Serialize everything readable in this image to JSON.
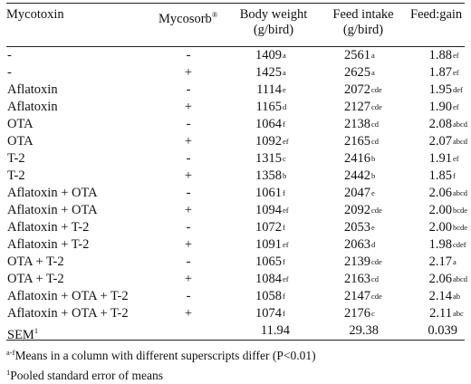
{
  "headers": {
    "mycotoxin": "Mycotoxin",
    "mycosorb": "Mycosorb",
    "mycosorb_mark": "®",
    "body_weight_1": "Body weight",
    "body_weight_2": "(g/bird)",
    "feed_intake_1": "Feed intake",
    "feed_intake_2": "(g/bird)",
    "feed_gain": "Feed:gain"
  },
  "rows": [
    {
      "mycotoxin": "-",
      "mycosorb": "-",
      "bw": "1409",
      "bw_sup": "a",
      "fi": "2561",
      "fi_sup": "a",
      "fg": "1.88",
      "fg_sup": "ef"
    },
    {
      "mycotoxin": "-",
      "mycosorb": "+",
      "bw": "1425",
      "bw_sup": "a",
      "fi": "2625",
      "fi_sup": "a",
      "fg": "1.87",
      "fg_sup": "ef"
    },
    {
      "mycotoxin": "Aflatoxin",
      "mycosorb": "-",
      "bw": "1114",
      "bw_sup": "e",
      "fi": "2072",
      "fi_sup": "cde",
      "fg": "1.95",
      "fg_sup": "def"
    },
    {
      "mycotoxin": "Aflatoxin",
      "mycosorb": "+",
      "bw": "1165",
      "bw_sup": "d",
      "fi": "2127",
      "fi_sup": "cde",
      "fg": "1.90",
      "fg_sup": "ef"
    },
    {
      "mycotoxin": "OTA",
      "mycosorb": "-",
      "bw": "1064",
      "bw_sup": "f",
      "fi": "2138",
      "fi_sup": "cd",
      "fg": "2.08",
      "fg_sup": "abcd"
    },
    {
      "mycotoxin": "OTA",
      "mycosorb": "+",
      "bw": "1092",
      "bw_sup": "ef",
      "fi": "2165",
      "fi_sup": "cd",
      "fg": "2.07",
      "fg_sup": "abcd"
    },
    {
      "mycotoxin": "T-2",
      "mycosorb": "-",
      "bw": "1315",
      "bw_sup": "c",
      "fi": "2416",
      "fi_sup": "b",
      "fg": "1.91",
      "fg_sup": "ef"
    },
    {
      "mycotoxin": "T-2",
      "mycosorb": "+",
      "bw": "1358",
      "bw_sup": "b",
      "fi": "2442",
      "fi_sup": "b",
      "fg": "1.85",
      "fg_sup": "f"
    },
    {
      "mycotoxin": "Aflatoxin + OTA",
      "mycosorb": "-",
      "bw": "1061",
      "bw_sup": "f",
      "fi": "2047",
      "fi_sup": "e",
      "fg": "2.06",
      "fg_sup": "abcd"
    },
    {
      "mycotoxin": "Aflatoxin + OTA",
      "mycosorb": "+",
      "bw": "1094",
      "bw_sup": "ef",
      "fi": "2092",
      "fi_sup": "cde",
      "fg": "2.00",
      "fg_sup": "bcde"
    },
    {
      "mycotoxin": "Aflatoxin + T-2",
      "mycosorb": "-",
      "bw": "1072",
      "bw_sup": "f",
      "fi": "2053",
      "fi_sup": "e",
      "fg": "2.00",
      "fg_sup": "bcde"
    },
    {
      "mycotoxin": "Aflatoxin + T-2",
      "mycosorb": "+",
      "bw": "1091",
      "bw_sup": "ef",
      "fi": "2063",
      "fi_sup": "d",
      "fg": "1.98",
      "fg_sup": "cdef"
    },
    {
      "mycotoxin": "OTA + T-2",
      "mycosorb": "-",
      "bw": "1065",
      "bw_sup": "f",
      "fi": "2139",
      "fi_sup": "cde",
      "fg": "2.17",
      "fg_sup": "a"
    },
    {
      "mycotoxin": "OTA + T-2",
      "mycosorb": "+",
      "bw": "1084",
      "bw_sup": "ef",
      "fi": "2163",
      "fi_sup": "cd",
      "fg": "2.06",
      "fg_sup": "abcd"
    },
    {
      "mycotoxin": "Aflatoxin + OTA + T-2",
      "mycosorb": "-",
      "bw": "1058",
      "bw_sup": "f",
      "fi": "2147",
      "fi_sup": "cde",
      "fg": "2.14",
      "fg_sup": "ab"
    },
    {
      "mycotoxin": "Aflatoxin + OTA + T-2",
      "mycosorb": "+",
      "bw": "1074",
      "bw_sup": "f",
      "fi": "2176",
      "fi_sup": "c",
      "fg": "2.11",
      "fg_sup": "abc"
    }
  ],
  "sem": {
    "label": "SEM",
    "label_sup": "1",
    "bw": "11.94",
    "fi": "29.38",
    "fg": "0.039"
  },
  "footnotes": {
    "f1_sup": "a-f",
    "f1_text": "Means in a column with different superscripts differ (P<0.01)",
    "f2_sup": "1",
    "f2_text": "Pooled standard error of means"
  }
}
